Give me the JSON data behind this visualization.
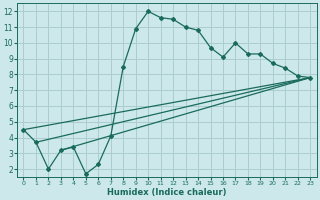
{
  "xlabel": "Humidex (Indice chaleur)",
  "bg_color": "#cce8ea",
  "grid_color": "#aacdd2",
  "line_color": "#1a6b5a",
  "line1_x": [
    0,
    1,
    2,
    3,
    4,
    5,
    6,
    7,
    8,
    9,
    10,
    11,
    12,
    13,
    14,
    15,
    16,
    17,
    18,
    19,
    20,
    21,
    22,
    23
  ],
  "line1_y": [
    4.5,
    3.7,
    2.0,
    3.2,
    3.4,
    1.7,
    2.3,
    4.1,
    8.5,
    10.9,
    12.0,
    11.6,
    11.5,
    11.0,
    10.8,
    9.7,
    9.1,
    10.0,
    9.3,
    9.3,
    8.7,
    8.4,
    7.9,
    7.8
  ],
  "line2_x": [
    0,
    23
  ],
  "line2_y": [
    4.5,
    7.8
  ],
  "line3_x": [
    1,
    23
  ],
  "line3_y": [
    3.7,
    7.8
  ],
  "line4_x": [
    3,
    23
  ],
  "line4_y": [
    3.2,
    7.8
  ],
  "xlim": [
    -0.5,
    23.5
  ],
  "ylim": [
    1.5,
    12.5
  ],
  "yticks": [
    2,
    3,
    4,
    5,
    6,
    7,
    8,
    9,
    10,
    11,
    12
  ],
  "xticks": [
    0,
    1,
    2,
    3,
    4,
    5,
    6,
    7,
    8,
    9,
    10,
    11,
    12,
    13,
    14,
    15,
    16,
    17,
    18,
    19,
    20,
    21,
    22,
    23
  ]
}
